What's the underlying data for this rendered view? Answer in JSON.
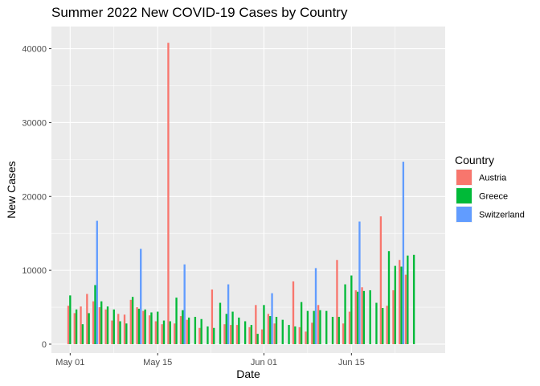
{
  "chart_data": {
    "type": "bar",
    "title": "Summer 2022 New COVID-19 Cases by Country",
    "xlabel": "Date",
    "ylabel": "New Cases",
    "xlim": [
      "2022-04-28",
      "2022-06-30"
    ],
    "ylim": [
      -1200,
      43000
    ],
    "y_ticks": [
      0,
      10000,
      20000,
      30000,
      40000
    ],
    "y_tick_labels": [
      "0",
      "10000",
      "20000",
      "30000",
      "40000"
    ],
    "x_ticks": [
      "2022-05-01",
      "2022-05-15",
      "2022-06-01",
      "2022-06-15"
    ],
    "x_tick_labels": [
      "May 01",
      "May 15",
      "Jun 01",
      "Jun 15"
    ],
    "grid": true,
    "legend_position": "right",
    "legend_title": "Country",
    "series": [
      {
        "name": "Austria",
        "color": "#f8766d",
        "points": [
          [
            "2022-05-01",
            5200
          ],
          [
            "2022-05-02",
            4200
          ],
          [
            "2022-05-03",
            5100
          ],
          [
            "2022-05-04",
            6800
          ],
          [
            "2022-05-05",
            5800
          ],
          [
            "2022-05-06",
            5000
          ],
          [
            "2022-05-07",
            4700
          ],
          [
            "2022-05-08",
            3200
          ],
          [
            "2022-05-09",
            4100
          ],
          [
            "2022-05-10",
            4000
          ],
          [
            "2022-05-11",
            6000
          ],
          [
            "2022-05-12",
            5000
          ],
          [
            "2022-05-13",
            4500
          ],
          [
            "2022-05-14",
            3900
          ],
          [
            "2022-05-15",
            3100
          ],
          [
            "2022-05-16",
            2700
          ],
          [
            "2022-05-17",
            40800
          ],
          [
            "2022-05-18",
            2800
          ],
          [
            "2022-05-19",
            3800
          ],
          [
            "2022-05-20",
            3300
          ],
          [
            "2022-05-22",
            2200
          ],
          [
            "2022-05-24",
            7400
          ],
          [
            "2022-05-26",
            2700
          ],
          [
            "2022-05-27",
            2600
          ],
          [
            "2022-05-28",
            2600
          ],
          [
            "2022-05-30",
            2300
          ],
          [
            "2022-05-31",
            5300
          ],
          [
            "2022-06-01",
            2000
          ],
          [
            "2022-06-02",
            4100
          ],
          [
            "2022-06-03",
            2800
          ],
          [
            "2022-06-06",
            8500
          ],
          [
            "2022-06-07",
            2300
          ],
          [
            "2022-06-08",
            1700
          ],
          [
            "2022-06-09",
            2900
          ],
          [
            "2022-06-10",
            5300
          ],
          [
            "2022-06-13",
            11400
          ],
          [
            "2022-06-14",
            2800
          ],
          [
            "2022-06-15",
            4400
          ],
          [
            "2022-06-16",
            7300
          ],
          [
            "2022-06-17",
            7700
          ],
          [
            "2022-06-20",
            17300
          ],
          [
            "2022-06-21",
            5200
          ],
          [
            "2022-06-22",
            7300
          ],
          [
            "2022-06-23",
            11400
          ],
          [
            "2022-06-24",
            9400
          ]
        ]
      },
      {
        "name": "Greece",
        "color": "#00ba38",
        "points": [
          [
            "2022-05-01",
            6600
          ],
          [
            "2022-05-02",
            4700
          ],
          [
            "2022-05-03",
            2700
          ],
          [
            "2022-05-04",
            4200
          ],
          [
            "2022-05-05",
            8000
          ],
          [
            "2022-05-06",
            5800
          ],
          [
            "2022-05-07",
            5100
          ],
          [
            "2022-05-08",
            4700
          ],
          [
            "2022-05-09",
            3100
          ],
          [
            "2022-05-10",
            2800
          ],
          [
            "2022-05-11",
            6400
          ],
          [
            "2022-05-12",
            4800
          ],
          [
            "2022-05-13",
            4700
          ],
          [
            "2022-05-14",
            4300
          ],
          [
            "2022-05-15",
            4400
          ],
          [
            "2022-05-16",
            3200
          ],
          [
            "2022-05-17",
            3100
          ],
          [
            "2022-05-18",
            6300
          ],
          [
            "2022-05-19",
            4600
          ],
          [
            "2022-05-20",
            3600
          ],
          [
            "2022-05-21",
            3700
          ],
          [
            "2022-05-22",
            3400
          ],
          [
            "2022-05-23",
            2400
          ],
          [
            "2022-05-24",
            2200
          ],
          [
            "2022-05-25",
            5600
          ],
          [
            "2022-05-26",
            4100
          ],
          [
            "2022-05-27",
            4400
          ],
          [
            "2022-05-28",
            3600
          ],
          [
            "2022-05-29",
            3100
          ],
          [
            "2022-05-30",
            2600
          ],
          [
            "2022-05-31",
            1400
          ],
          [
            "2022-06-01",
            5300
          ],
          [
            "2022-06-02",
            3800
          ],
          [
            "2022-06-03",
            3700
          ],
          [
            "2022-06-04",
            3300
          ],
          [
            "2022-06-05",
            2600
          ],
          [
            "2022-06-06",
            2400
          ],
          [
            "2022-06-07",
            5700
          ],
          [
            "2022-06-08",
            4500
          ],
          [
            "2022-06-09",
            4500
          ],
          [
            "2022-06-10",
            4600
          ],
          [
            "2022-06-11",
            4500
          ],
          [
            "2022-06-12",
            3700
          ],
          [
            "2022-06-13",
            3700
          ],
          [
            "2022-06-14",
            8100
          ],
          [
            "2022-06-15",
            9300
          ],
          [
            "2022-06-16",
            7100
          ],
          [
            "2022-06-17",
            7200
          ],
          [
            "2022-06-18",
            7300
          ],
          [
            "2022-06-19",
            5600
          ],
          [
            "2022-06-20",
            4900
          ],
          [
            "2022-06-21",
            12600
          ],
          [
            "2022-06-22",
            10600
          ],
          [
            "2022-06-23",
            10500
          ],
          [
            "2022-06-24",
            12000
          ],
          [
            "2022-06-25",
            12100
          ]
        ]
      },
      {
        "name": "Switzerland",
        "color": "#619cff",
        "points": [
          [
            "2022-05-05",
            16700
          ],
          [
            "2022-05-12",
            12900
          ],
          [
            "2022-05-19",
            10800
          ],
          [
            "2022-05-26",
            8100
          ],
          [
            "2022-06-02",
            6900
          ],
          [
            "2022-06-09",
            10300
          ],
          [
            "2022-06-16",
            16600
          ],
          [
            "2022-06-23",
            24700
          ]
        ]
      }
    ]
  }
}
